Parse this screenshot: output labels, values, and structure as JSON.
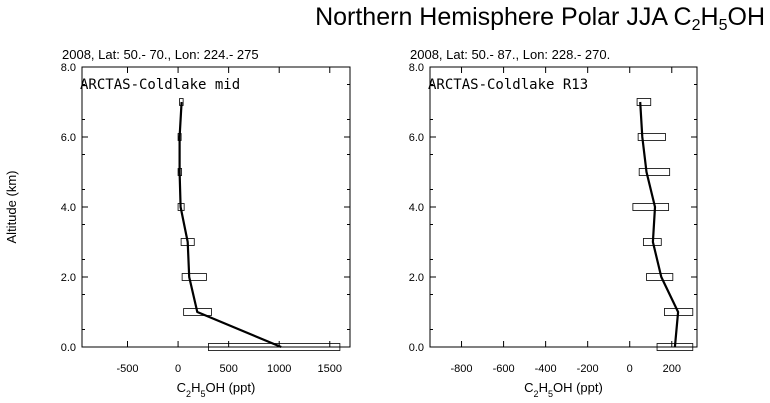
{
  "title": {
    "prefix": "Northern Hemisphere Polar JJA C",
    "sub1": "2",
    "mid": "H",
    "sub2": "5",
    "suffix": "OH"
  },
  "chart_data": [
    {
      "type": "line",
      "subtitle": "2008, Lat:  50.- 70., Lon: 224.- 275",
      "annotation": "ARCTAS-Coldlake mid",
      "xlabel": "C2H5OH (ppt)",
      "ylabel": "Altitude (km)",
      "xlim": [
        -950,
        1700
      ],
      "ylim": [
        0,
        8
      ],
      "xticks": [
        -500,
        0,
        500,
        1000,
        1500
      ],
      "xtick_labels": [
        "-500",
        "0",
        "500",
        "1000",
        "1500"
      ],
      "yticks": [
        0,
        2,
        4,
        6,
        8
      ],
      "ytick_labels": [
        "0.0",
        "2.0",
        "4.0",
        "6.0",
        "8.0"
      ],
      "series": [
        {
          "altitude": [
            0,
            1,
            2,
            3,
            4,
            5,
            6,
            7
          ],
          "mean": [
            1020,
            190,
            110,
            95,
            25,
            15,
            15,
            35
          ],
          "range_low": [
            300,
            55,
            40,
            30,
            0,
            0,
            0,
            15
          ],
          "range_high": [
            1600,
            330,
            280,
            160,
            60,
            35,
            30,
            50
          ]
        }
      ]
    },
    {
      "type": "line",
      "subtitle": "2008, Lat:  50.- 87., Lon: 228.- 270.",
      "annotation": "ARCTAS-Coldlake R13",
      "xlabel": "C2H5OH (ppt)",
      "ylabel": "",
      "xlim": [
        -950,
        320
      ],
      "ylim": [
        0,
        8
      ],
      "xticks": [
        -800,
        -600,
        -400,
        -200,
        0,
        200
      ],
      "xtick_labels": [
        "-800",
        "-600",
        "-400",
        "-200",
        "0",
        "200"
      ],
      "yticks": [
        0,
        2,
        4,
        6,
        8
      ],
      "ytick_labels": [
        "0.0",
        "2.0",
        "4.0",
        "6.0",
        "8.0"
      ],
      "series": [
        {
          "altitude": [
            0,
            1,
            2,
            3,
            4,
            5,
            6,
            7
          ],
          "mean": [
            215,
            230,
            150,
            110,
            120,
            80,
            60,
            50
          ],
          "range_low": [
            130,
            165,
            80,
            65,
            15,
            45,
            40,
            35
          ],
          "range_high": [
            300,
            300,
            205,
            150,
            185,
            190,
            170,
            100
          ]
        }
      ]
    }
  ]
}
